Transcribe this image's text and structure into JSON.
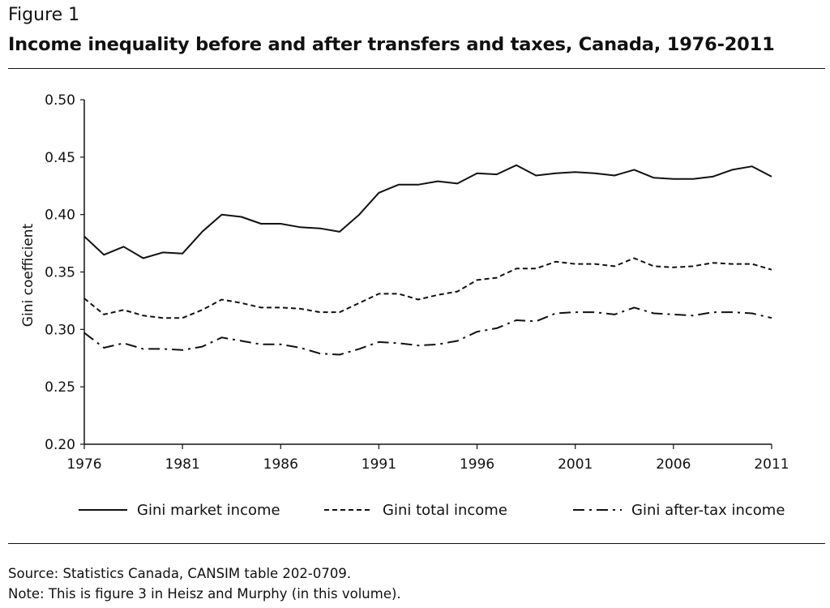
{
  "figure": {
    "label": "Figure 1",
    "title": "Income inequality before and after transfers and taxes, Canada, 1976-2011"
  },
  "footnotes": {
    "source": "Source: Statistics Canada, CANSIM table 202-0709.",
    "note": "Note: This is figure 3 in Heisz and Murphy (in this volume)."
  },
  "chart_data": {
    "type": "line",
    "title": "Income inequality before and after transfers and taxes, Canada, 1976-2011",
    "xlabel": "",
    "ylabel": "Gini coefficient",
    "xlim": [
      1976,
      2011
    ],
    "ylim": [
      0.2,
      0.5
    ],
    "x_ticks": [
      "1976",
      "1981",
      "1986",
      "1991",
      "1996",
      "2001",
      "2006",
      "2011"
    ],
    "y_ticks": [
      "0.20",
      "0.25",
      "0.30",
      "0.35",
      "0.40",
      "0.45",
      "0.50"
    ],
    "grid": false,
    "legend_position": "bottom",
    "x": [
      1976,
      1977,
      1978,
      1979,
      1980,
      1981,
      1982,
      1983,
      1984,
      1985,
      1986,
      1987,
      1988,
      1989,
      1990,
      1991,
      1992,
      1993,
      1994,
      1995,
      1996,
      1997,
      1998,
      1999,
      2000,
      2001,
      2002,
      2003,
      2004,
      2005,
      2006,
      2007,
      2008,
      2009,
      2010,
      2011
    ],
    "series": [
      {
        "name": "Gini market income",
        "style": "solid",
        "values": [
          0.381,
          0.365,
          0.372,
          0.362,
          0.367,
          0.366,
          0.385,
          0.4,
          0.398,
          0.392,
          0.392,
          0.389,
          0.388,
          0.385,
          0.4,
          0.419,
          0.426,
          0.426,
          0.429,
          0.427,
          0.436,
          0.435,
          0.443,
          0.434,
          0.436,
          0.437,
          0.436,
          0.434,
          0.439,
          0.432,
          0.431,
          0.431,
          0.433,
          0.439,
          0.442,
          0.433
        ]
      },
      {
        "name": "Gini total income",
        "style": "dashed",
        "values": [
          0.327,
          0.313,
          0.317,
          0.312,
          0.31,
          0.31,
          0.317,
          0.326,
          0.323,
          0.319,
          0.319,
          0.318,
          0.315,
          0.315,
          0.323,
          0.331,
          0.331,
          0.326,
          0.33,
          0.333,
          0.343,
          0.345,
          0.353,
          0.353,
          0.359,
          0.357,
          0.357,
          0.355,
          0.362,
          0.355,
          0.354,
          0.355,
          0.358,
          0.357,
          0.357,
          0.352
        ]
      },
      {
        "name": "Gini after-tax income",
        "style": "dashdot",
        "values": [
          0.297,
          0.284,
          0.288,
          0.283,
          0.283,
          0.282,
          0.285,
          0.293,
          0.29,
          0.287,
          0.287,
          0.284,
          0.279,
          0.278,
          0.283,
          0.289,
          0.288,
          0.286,
          0.287,
          0.29,
          0.298,
          0.301,
          0.308,
          0.307,
          0.314,
          0.315,
          0.315,
          0.313,
          0.319,
          0.314,
          0.313,
          0.312,
          0.315,
          0.315,
          0.314,
          0.31
        ]
      }
    ]
  }
}
